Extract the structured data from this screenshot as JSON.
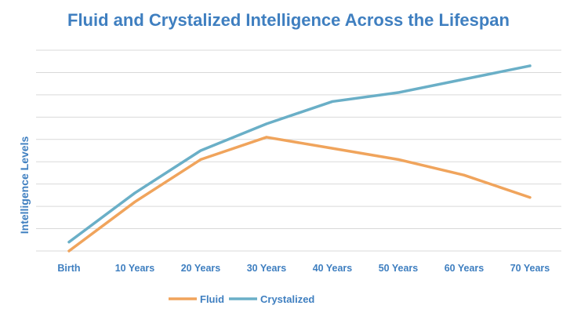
{
  "chart_data": {
    "type": "line",
    "title": "Fluid and Crystalized Intelligence Across the Lifespan",
    "xlabel": "",
    "ylabel": "Intelligence Levels",
    "categories": [
      "Birth",
      "10 Years",
      "20 Years",
      "30 Years",
      "40 Years",
      "50 Years",
      "60 Years",
      "70 Years"
    ],
    "ylim": [
      0,
      9
    ],
    "grid": true,
    "legend_position": "bottom",
    "series": [
      {
        "name": "Fluid",
        "color": "#f0a45c",
        "values": [
          0.0,
          2.2,
          4.1,
          5.1,
          4.6,
          4.1,
          3.4,
          2.4
        ]
      },
      {
        "name": "Crystalized",
        "color": "#6aafc7",
        "values": [
          0.4,
          2.6,
          4.5,
          5.7,
          6.7,
          7.1,
          7.7,
          8.3
        ]
      }
    ],
    "colors": {
      "title": "#3f7fc0",
      "axis_text": "#3f7fc0",
      "grid": "#d9d9d9"
    }
  }
}
